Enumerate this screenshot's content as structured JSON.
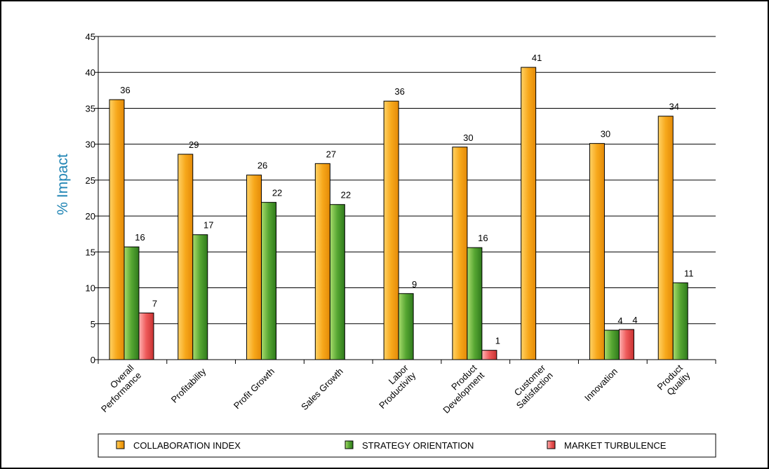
{
  "chart_data": {
    "type": "bar",
    "title": "",
    "xlabel": "",
    "ylabel": "% Impact",
    "ylim": [
      0,
      45
    ],
    "yticks": [
      0,
      5,
      10,
      15,
      20,
      25,
      30,
      35,
      40,
      45
    ],
    "grid": "horizontal",
    "legend_position": "bottom",
    "categories": [
      [
        "Overall",
        "Performance"
      ],
      [
        "Profitability"
      ],
      [
        "Profit Growth"
      ],
      [
        "Sales Growth"
      ],
      [
        "Labor",
        "Productivity"
      ],
      [
        "Product",
        "Development"
      ],
      [
        "Customer",
        "Satisfaction"
      ],
      [
        "Innovation"
      ],
      [
        "Product",
        "Quality"
      ]
    ],
    "series": [
      {
        "name": "COLLABORATION INDEX",
        "color": "#f7a81b",
        "values": [
          36.2,
          28.6,
          25.7,
          27.3,
          36.0,
          29.6,
          40.7,
          30.1,
          33.9
        ],
        "labels": [
          "36",
          "29",
          "26",
          "27",
          "36",
          "30",
          "41",
          "30",
          "34"
        ]
      },
      {
        "name": "STRATEGY ORIENTATION",
        "color": "#56a632",
        "values": [
          15.7,
          17.4,
          21.9,
          21.6,
          9.2,
          15.6,
          null,
          4.1,
          10.7
        ],
        "labels": [
          "16",
          "17",
          "22",
          "22",
          "9",
          "16",
          "",
          "4",
          "11"
        ]
      },
      {
        "name": "MARKET TURBULENCE",
        "color": "#ee5a5a",
        "values": [
          6.5,
          null,
          null,
          null,
          null,
          1.3,
          null,
          4.2,
          null
        ],
        "labels": [
          "7",
          "",
          "",
          "",
          "",
          "1",
          "",
          "4",
          ""
        ]
      }
    ]
  }
}
